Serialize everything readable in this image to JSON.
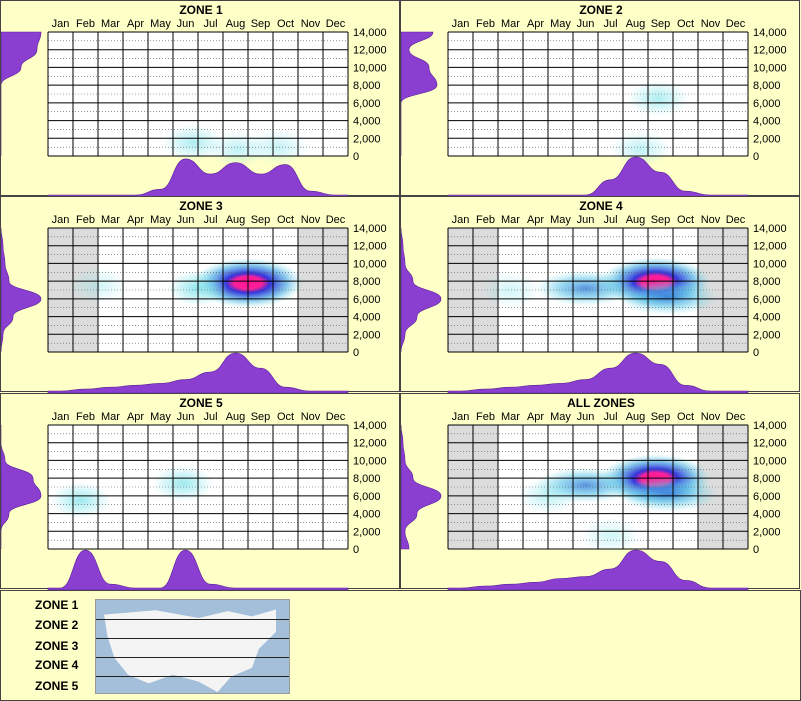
{
  "months": [
    "Jan",
    "Feb",
    "Mar",
    "Apr",
    "May",
    "Jun",
    "Jul",
    "Aug",
    "Sep",
    "Oct",
    "Nov",
    "Dec"
  ],
  "y_ticks": [
    "14,000",
    "12,000",
    "10,000",
    "8,000",
    "6,000",
    "4,000",
    "2,000",
    "0"
  ],
  "colors": {
    "background": "#ffffc8",
    "marginal": "#8a3fd1",
    "low_density": "#7fe3ea",
    "high_density": "#2a2ad9",
    "peak": "#ff1493",
    "out_of_season": "#dcdcdc"
  },
  "chart_data": [
    {
      "type": "heatmap",
      "title": "ZONE 1",
      "x_categories": [
        "Jan",
        "Feb",
        "Mar",
        "Apr",
        "May",
        "Jun",
        "Jul",
        "Aug",
        "Sep",
        "Oct",
        "Nov",
        "Dec"
      ],
      "ylim": [
        0,
        14000
      ],
      "shaded_months": [],
      "density_blobs": [
        {
          "month": 5.3,
          "elevation": 1500,
          "intensity": 0.25
        },
        {
          "month": 7.1,
          "elevation": 800,
          "intensity": 0.2
        },
        {
          "month": 8.7,
          "elevation": 1000,
          "intensity": 0.18
        }
      ],
      "month_distribution": [
        0,
        0,
        0,
        0,
        0.15,
        0.95,
        0.55,
        0.85,
        0.55,
        0.8,
        0.1,
        0
      ],
      "elevation_distribution": [
        1.0,
        0.9,
        0.5,
        0,
        0,
        0,
        0,
        0
      ]
    },
    {
      "type": "heatmap",
      "title": "ZONE 2",
      "x_categories": [
        "Jan",
        "Feb",
        "Mar",
        "Apr",
        "May",
        "Jun",
        "Jul",
        "Aug",
        "Sep",
        "Oct",
        "Nov",
        "Dec"
      ],
      "ylim": [
        0,
        14000
      ],
      "shaded_months": [],
      "density_blobs": [
        {
          "month": 7.9,
          "elevation": 6500,
          "intensity": 0.25
        },
        {
          "month": 7.2,
          "elevation": 800,
          "intensity": 0.2
        }
      ],
      "month_distribution": [
        0,
        0,
        0,
        0,
        0,
        0,
        0.4,
        1.0,
        0.6,
        0.1,
        0,
        0
      ],
      "elevation_distribution": [
        0.8,
        0.2,
        0.7,
        0.9,
        0,
        0,
        0,
        0
      ]
    },
    {
      "type": "heatmap",
      "title": "ZONE 3",
      "x_categories": [
        "Jan",
        "Feb",
        "Mar",
        "Apr",
        "May",
        "Jun",
        "Jul",
        "Aug",
        "Sep",
        "Oct",
        "Nov",
        "Dec"
      ],
      "ylim": [
        0,
        14000
      ],
      "shaded_months": [
        "Jan",
        "Feb",
        "Nov",
        "Dec"
      ],
      "density_blobs": [
        {
          "month": 7.5,
          "elevation": 7800,
          "intensity": 1.0
        },
        {
          "month": 5.5,
          "elevation": 7200,
          "intensity": 0.35
        },
        {
          "month": 1.5,
          "elevation": 7500,
          "intensity": 0.15
        }
      ],
      "month_distribution": [
        0,
        0.05,
        0.1,
        0.15,
        0.2,
        0.3,
        0.5,
        1.0,
        0.6,
        0.1,
        0,
        0
      ],
      "elevation_distribution": [
        0,
        0.05,
        0.1,
        0.2,
        1.0,
        0.3,
        0.05,
        0
      ]
    },
    {
      "type": "heatmap",
      "title": "ZONE 4",
      "x_categories": [
        "Jan",
        "Feb",
        "Mar",
        "Apr",
        "May",
        "Jun",
        "Jul",
        "Aug",
        "Sep",
        "Oct",
        "Nov",
        "Dec"
      ],
      "ylim": [
        0,
        14000
      ],
      "shaded_months": [
        "Jan",
        "Feb",
        "Nov",
        "Dec"
      ],
      "density_blobs": [
        {
          "month": 7.8,
          "elevation": 7900,
          "intensity": 1.0
        },
        {
          "month": 5.0,
          "elevation": 7200,
          "intensity": 0.45
        },
        {
          "month": 8.3,
          "elevation": 6200,
          "intensity": 0.5
        },
        {
          "month": 2.0,
          "elevation": 7000,
          "intensity": 0.15
        }
      ],
      "month_distribution": [
        0,
        0.05,
        0.1,
        0.15,
        0.2,
        0.3,
        0.6,
        1.0,
        0.7,
        0.15,
        0,
        0
      ],
      "elevation_distribution": [
        0,
        0.05,
        0.1,
        0.3,
        1.0,
        0.4,
        0.1,
        0
      ]
    },
    {
      "type": "heatmap",
      "title": "ZONE 5",
      "x_categories": [
        "Jan",
        "Feb",
        "Mar",
        "Apr",
        "May",
        "Jun",
        "Jul",
        "Aug",
        "Sep",
        "Oct",
        "Nov",
        "Dec"
      ],
      "ylim": [
        0,
        14000
      ],
      "shaded_months": [],
      "density_blobs": [
        {
          "month": 0.8,
          "elevation": 5500,
          "intensity": 0.3
        },
        {
          "month": 4.9,
          "elevation": 7400,
          "intensity": 0.3
        }
      ],
      "month_distribution": [
        0,
        1.0,
        0.1,
        0,
        0,
        1.0,
        0.1,
        0,
        0,
        0,
        0,
        0
      ],
      "elevation_distribution": [
        0,
        0,
        0.1,
        0.8,
        1.0,
        0.2,
        0,
        0
      ]
    },
    {
      "type": "heatmap",
      "title": "ALL ZONES",
      "x_categories": [
        "Jan",
        "Feb",
        "Mar",
        "Apr",
        "May",
        "Jun",
        "Jul",
        "Aug",
        "Sep",
        "Oct",
        "Nov",
        "Dec"
      ],
      "ylim": [
        0,
        14000
      ],
      "shaded_months": [
        "Jan",
        "Feb",
        "Nov",
        "Dec"
      ],
      "density_blobs": [
        {
          "month": 7.8,
          "elevation": 7900,
          "intensity": 1.0
        },
        {
          "month": 5.0,
          "elevation": 7200,
          "intensity": 0.45
        },
        {
          "month": 8.3,
          "elevation": 6200,
          "intensity": 0.5
        },
        {
          "month": 3.5,
          "elevation": 6000,
          "intensity": 0.2
        },
        {
          "month": 6.0,
          "elevation": 1500,
          "intensity": 0.15
        }
      ],
      "month_distribution": [
        0,
        0.05,
        0.1,
        0.15,
        0.25,
        0.3,
        0.5,
        1.0,
        0.7,
        0.2,
        0,
        0
      ],
      "elevation_distribution": [
        0,
        0.05,
        0.1,
        0.3,
        1.0,
        0.4,
        0.1,
        0.2
      ]
    }
  ],
  "legend": {
    "zones": [
      "ZONE 1",
      "ZONE 2",
      "ZONE 3",
      "ZONE 4",
      "ZONE 5"
    ]
  }
}
